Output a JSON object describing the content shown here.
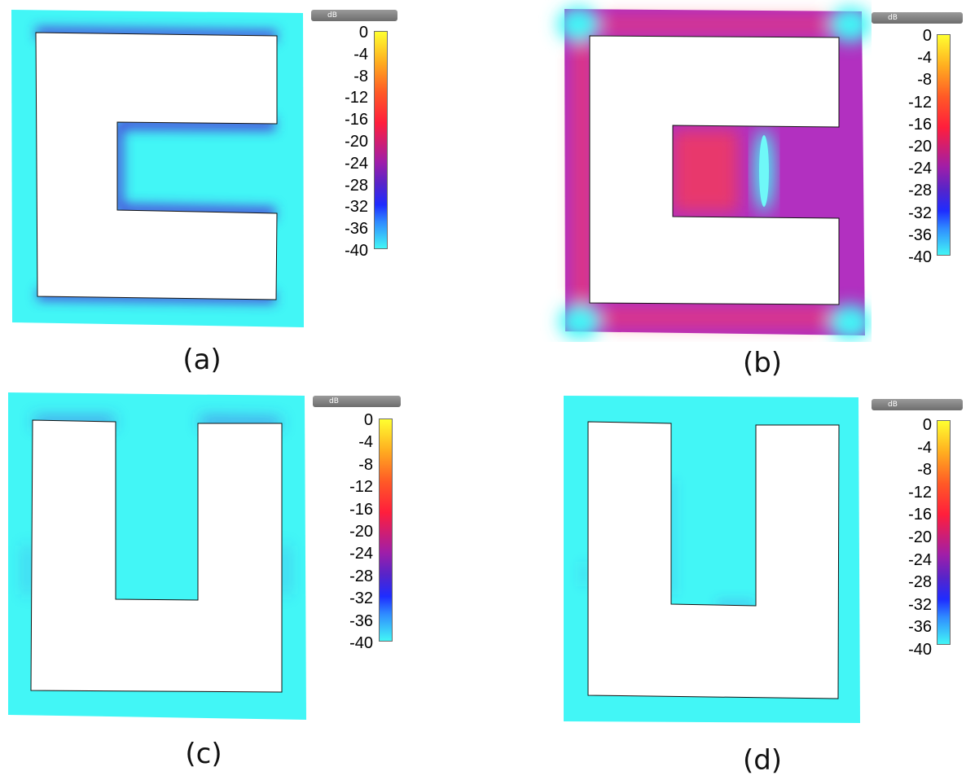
{
  "colorbar": {
    "unit": "dB",
    "ticks": [
      "0",
      "-4",
      "-8",
      "-12",
      "-16",
      "-20",
      "-24",
      "-28",
      "-32",
      "-36",
      "-40"
    ],
    "colors": {
      "max": "#ffff30",
      "mid": "#ff1e3c",
      "low": "#1e2cff",
      "min": "#42f6f6"
    }
  },
  "panels": [
    {
      "caption": "(a)",
      "shape": "E-slot",
      "distribution": "mostly minimum (cyan) with blue edges along slot boundaries"
    },
    {
      "caption": "(b)",
      "shape": "E-slot",
      "distribution": "high (red/magenta) across ring, cyan nodes at corners and center of slot arm"
    },
    {
      "caption": "(c)",
      "shape": "U-slot",
      "distribution": "mostly minimum (cyan), faint blue at top corners"
    },
    {
      "caption": "(d)",
      "shape": "U-slot",
      "distribution": "uniform minimum (cyan)"
    }
  ]
}
